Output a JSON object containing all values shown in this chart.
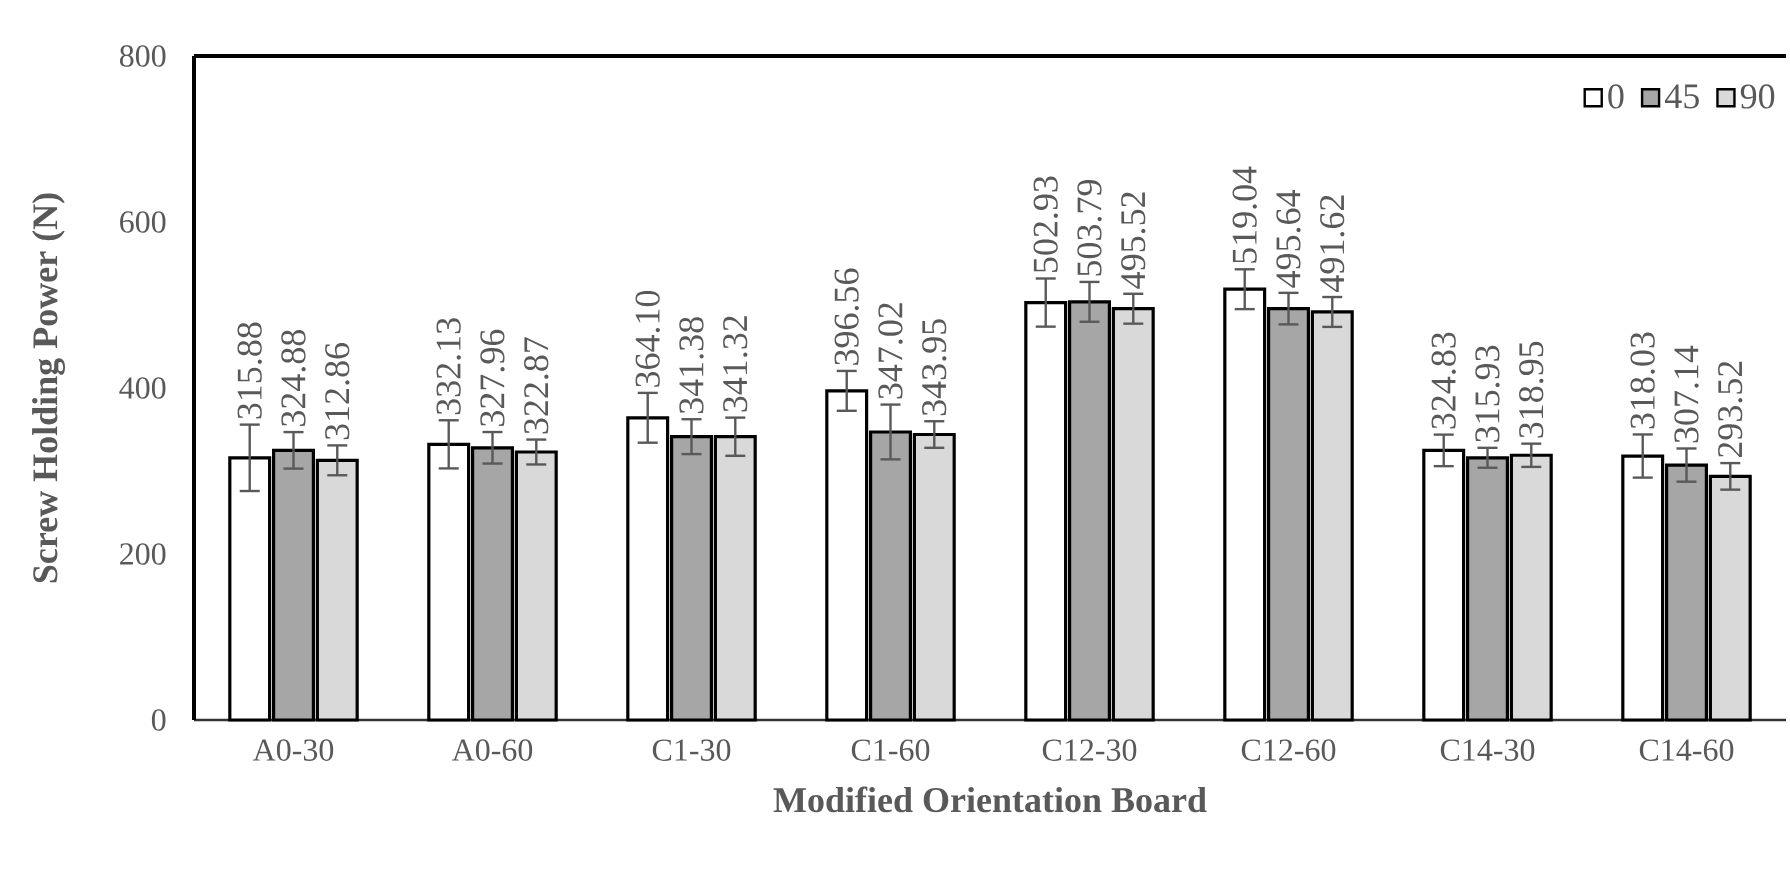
{
  "chart_data": {
    "type": "bar",
    "xlabel": "Modified Orientation Board",
    "ylabel": "Screw Holding Power (N)",
    "categories": [
      "A0-30",
      "A0-60",
      "C1-30",
      "C1-60",
      "C12-30",
      "C12-60",
      "C14-30",
      "C14-60"
    ],
    "series": [
      {
        "name": "0",
        "color": "#ffffff",
        "values": [
          315.88,
          332.13,
          364.1,
          396.56,
          502.93,
          519.04,
          324.83,
          318.03
        ],
        "errors": [
          40,
          29,
          30,
          24,
          29,
          24,
          19,
          26
        ],
        "value_labels": [
          "315.88",
          "332.13",
          "364.10",
          "396.56",
          "502.93",
          "519.04",
          "324.83",
          "318.03"
        ]
      },
      {
        "name": "45",
        "color": "#a6a6a6",
        "values": [
          324.88,
          327.96,
          341.38,
          347.02,
          503.79,
          495.64,
          315.93,
          307.14
        ],
        "errors": [
          22,
          19,
          21,
          33,
          24,
          19,
          12,
          20
        ],
        "value_labels": [
          "324.88",
          "327.96",
          "341.38",
          "347.02",
          "503.79",
          "495.64",
          "315.93",
          "307.14"
        ]
      },
      {
        "name": "90",
        "color": "#d9d9d9",
        "values": [
          312.86,
          322.87,
          341.32,
          343.95,
          495.52,
          491.62,
          318.95,
          293.52
        ],
        "errors": [
          18,
          15,
          23,
          16,
          18,
          18,
          14,
          16
        ],
        "value_labels": [
          "312.86",
          "322.87",
          "341.32",
          "343.95",
          "495.52",
          "491.62",
          "318.95",
          "293.52"
        ]
      }
    ],
    "ylim": [
      0,
      800
    ],
    "yticks": [
      0,
      200,
      400,
      600,
      800
    ],
    "legend": "top right",
    "grid": false
  }
}
